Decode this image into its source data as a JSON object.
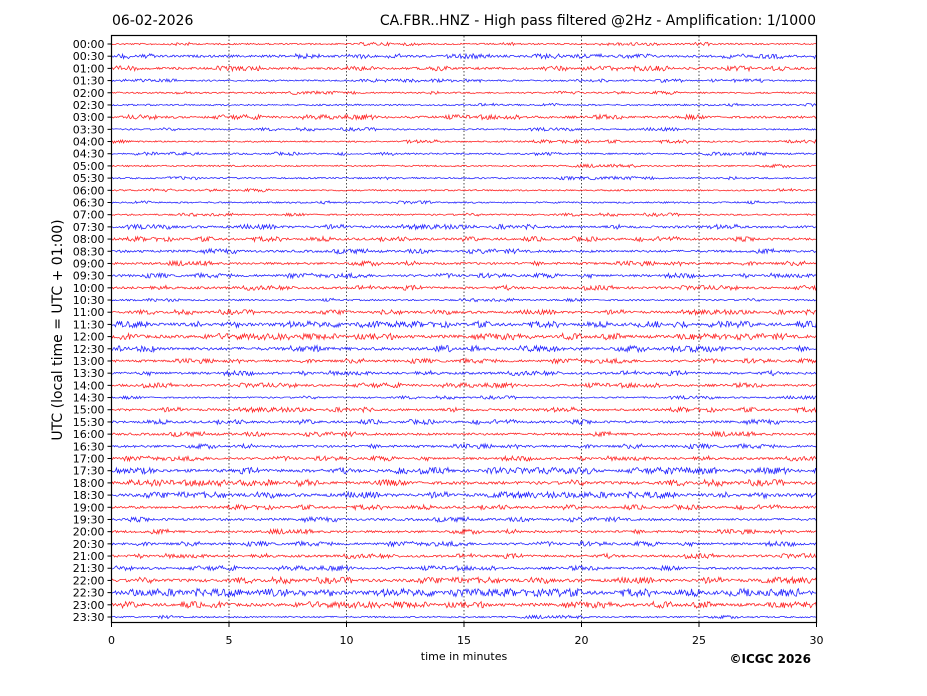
{
  "chart_data": {
    "type": "line",
    "title_left": "06-02-2026",
    "title_right": "CA.FBR..HNZ - High pass filtered @2Hz - Amplification: 1/1000",
    "xlabel": "time in minutes",
    "ylabel": "UTC (local time = UTC + 01:00)",
    "xlim": [
      0,
      30
    ],
    "x_ticks": [
      "0",
      "5",
      "10",
      "15",
      "20",
      "25",
      "30"
    ],
    "vertical_gridlines_minutes": [
      5,
      10,
      15,
      20,
      25
    ],
    "colors": {
      "even_rows": "#ff0000",
      "odd_rows": "#0000ff"
    },
    "copyright": "©ICGC 2026",
    "rows": [
      {
        "label": "00:00",
        "noise_level": 1
      },
      {
        "label": "00:30",
        "noise_level": 2
      },
      {
        "label": "01:00",
        "noise_level": 2
      },
      {
        "label": "01:30",
        "noise_level": 1
      },
      {
        "label": "02:00",
        "noise_level": 1
      },
      {
        "label": "02:30",
        "noise_level": 1
      },
      {
        "label": "03:00",
        "noise_level": 2
      },
      {
        "label": "03:30",
        "noise_level": 1
      },
      {
        "label": "04:00",
        "noise_level": 1
      },
      {
        "label": "04:30",
        "noise_level": 1
      },
      {
        "label": "05:00",
        "noise_level": 1
      },
      {
        "label": "05:30",
        "noise_level": 1
      },
      {
        "label": "06:00",
        "noise_level": 1
      },
      {
        "label": "06:30",
        "noise_level": 1
      },
      {
        "label": "07:00",
        "noise_level": 1
      },
      {
        "label": "07:30",
        "noise_level": 2
      },
      {
        "label": "08:00",
        "noise_level": 2
      },
      {
        "label": "08:30",
        "noise_level": 2
      },
      {
        "label": "09:00",
        "noise_level": 2
      },
      {
        "label": "09:30",
        "noise_level": 2
      },
      {
        "label": "10:00",
        "noise_level": 2
      },
      {
        "label": "10:30",
        "noise_level": 1
      },
      {
        "label": "11:00",
        "noise_level": 2
      },
      {
        "label": "11:30",
        "noise_level": 3
      },
      {
        "label": "12:00",
        "noise_level": 3
      },
      {
        "label": "12:30",
        "noise_level": 3
      },
      {
        "label": "13:00",
        "noise_level": 2
      },
      {
        "label": "13:30",
        "noise_level": 2
      },
      {
        "label": "14:00",
        "noise_level": 2
      },
      {
        "label": "14:30",
        "noise_level": 1
      },
      {
        "label": "15:00",
        "noise_level": 2
      },
      {
        "label": "15:30",
        "noise_level": 2
      },
      {
        "label": "16:00",
        "noise_level": 2
      },
      {
        "label": "16:30",
        "noise_level": 2
      },
      {
        "label": "17:00",
        "noise_level": 2
      },
      {
        "label": "17:30",
        "noise_level": 3
      },
      {
        "label": "18:00",
        "noise_level": 3
      },
      {
        "label": "18:30",
        "noise_level": 3
      },
      {
        "label": "19:00",
        "noise_level": 2
      },
      {
        "label": "19:30",
        "noise_level": 2
      },
      {
        "label": "20:00",
        "noise_level": 2
      },
      {
        "label": "20:30",
        "noise_level": 2
      },
      {
        "label": "21:00",
        "noise_level": 2
      },
      {
        "label": "21:30",
        "noise_level": 2
      },
      {
        "label": "22:00",
        "noise_level": 3
      },
      {
        "label": "22:30",
        "noise_level": 4
      },
      {
        "label": "23:00",
        "noise_level": 3
      },
      {
        "label": "23:30",
        "noise_level": 1
      }
    ]
  }
}
